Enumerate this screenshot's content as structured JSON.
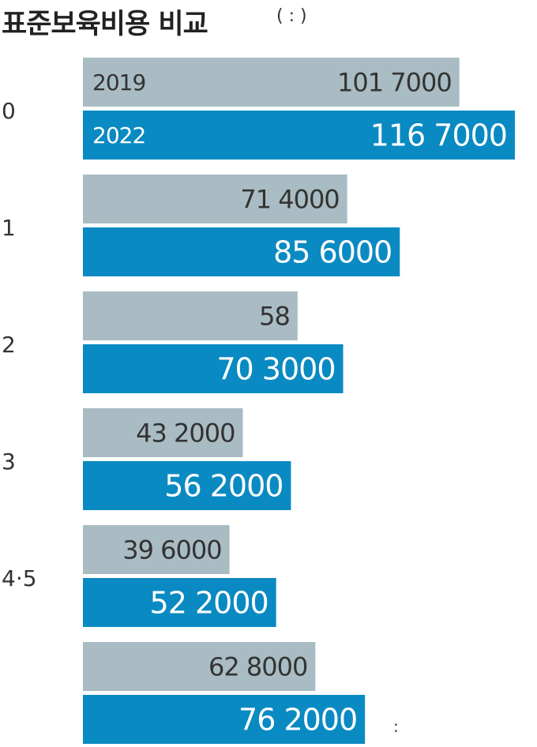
{
  "title": "표준보육비용 비교",
  "title_note": "(   :        )",
  "source_note": ":",
  "colors": {
    "series_2019": "#a9bcc3",
    "series_2022": "#0a8ac2",
    "text_2019": "#333333",
    "text_2022": "#ffffff"
  },
  "chart_data": {
    "type": "bar",
    "orientation": "horizontal",
    "title": "표준보육비용 비교",
    "categories": [
      "0",
      "1",
      "2",
      "3",
      "4·5",
      ""
    ],
    "series": [
      {
        "name": "2019",
        "values": [
          1017000,
          714000,
          580000,
          432000,
          396000,
          628000
        ],
        "labels": [
          "101   7000",
          "71   4000",
          "58",
          "43   2000",
          "39   6000",
          "62   8000"
        ]
      },
      {
        "name": "2022",
        "values": [
          1167000,
          856000,
          703000,
          562000,
          522000,
          762000
        ],
        "labels": [
          "116   7000",
          "85   6000",
          "70   3000",
          "56   2000",
          "52   2000",
          "76   2000"
        ]
      }
    ],
    "xlim": [
      0,
      1200000
    ],
    "grid": false,
    "legend": "inside first bars"
  }
}
